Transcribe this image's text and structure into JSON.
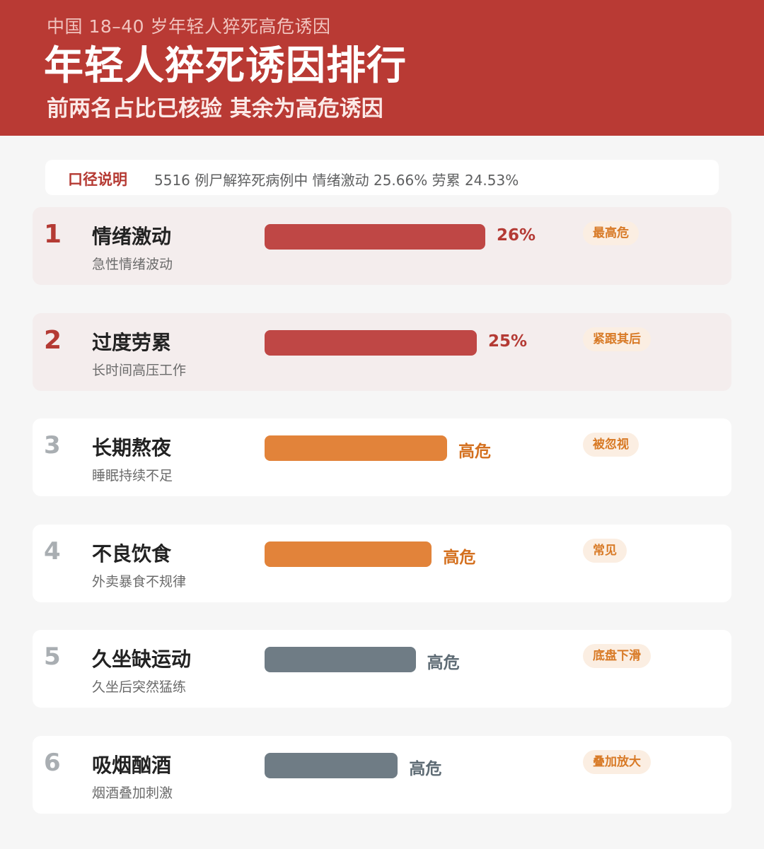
{
  "header": {
    "supertitle": "中国 18–40 岁年轻人猝死高危诱因",
    "title": "年轻人猝死诱因排行",
    "subtitle": "前两名占比已核验 其余为高危诱因"
  },
  "note": {
    "label": "口径说明",
    "text": "5516 例尸解猝死病例中 情绪激动 25.66% 劳累 24.53%"
  },
  "colors": {
    "red": "#bf4745",
    "orange": "#e2833a",
    "gray": "#6f7c85",
    "badge_text": "#d87a26"
  },
  "chart_data": {
    "type": "bar",
    "orientation": "horizontal",
    "items": [
      {
        "rank": "1",
        "name": "情绪激动",
        "desc": "急性情绪波动",
        "value": 26,
        "label": "26%",
        "badge": "最高危",
        "color": "#bf4745",
        "label_color": "#b43a34",
        "top": true
      },
      {
        "rank": "2",
        "name": "过度劳累",
        "desc": "长时间高压工作",
        "value": 25,
        "label": "25%",
        "badge": "紧跟其后",
        "color": "#bf4745",
        "label_color": "#b43a34",
        "top": true
      },
      {
        "rank": "3",
        "name": "长期熬夜",
        "desc": "睡眠持续不足",
        "value": 21.5,
        "label": "高危",
        "badge": "被忽视",
        "color": "#e2833a",
        "label_color": "#d4701f",
        "top": false
      },
      {
        "rank": "4",
        "name": "不良饮食",
        "desc": "外卖暴食不规律",
        "value": 19.7,
        "label": "高危",
        "badge": "常见",
        "color": "#e2833a",
        "label_color": "#d4701f",
        "top": false
      },
      {
        "rank": "5",
        "name": "久坐缺运动",
        "desc": "久坐后突然猛练",
        "value": 17.8,
        "label": "高危",
        "badge": "底盘下滑",
        "color": "#6f7c85",
        "label_color": "#5e6b74",
        "top": false
      },
      {
        "rank": "6",
        "name": "吸烟酗酒",
        "desc": "烟酒叠加刺激",
        "value": 15.7,
        "label": "高危",
        "badge": "叠加放大",
        "color": "#6f7c85",
        "label_color": "#5e6b74",
        "top": false
      }
    ]
  }
}
